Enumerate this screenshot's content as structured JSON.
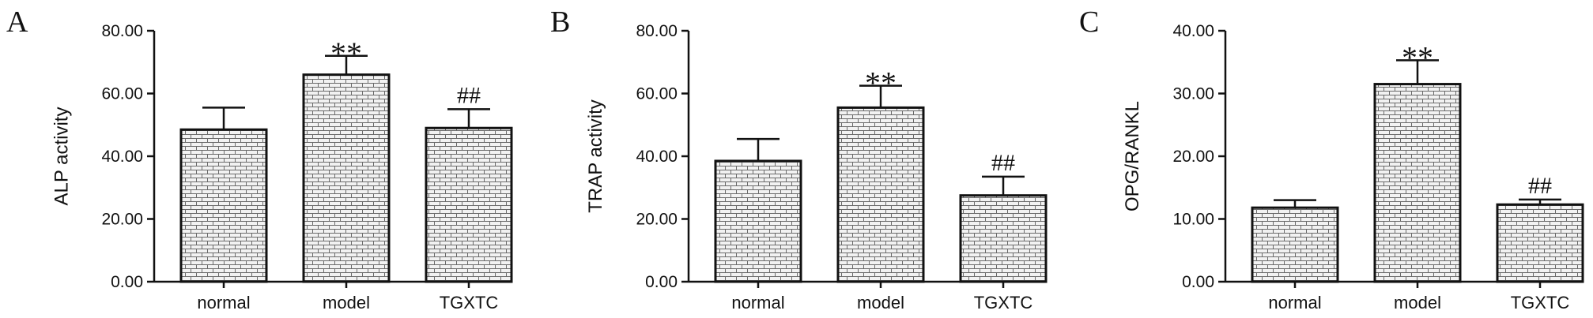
{
  "chart_data": [
    {
      "type": "bar",
      "panel_label": "A",
      "ylabel": "ALP activity",
      "categories": [
        "normal",
        "model",
        "TGXTC"
      ],
      "values": [
        48.5,
        66.0,
        49.0
      ],
      "errors": [
        7.0,
        6.0,
        6.0
      ],
      "significance": [
        "",
        "**",
        "##"
      ],
      "ylim": [
        0,
        80
      ],
      "yticks": [
        "0.00",
        "20.00",
        "40.00",
        "60.00",
        "80.00"
      ],
      "grid": false,
      "bar_fill": "brick-hatch gray"
    },
    {
      "type": "bar",
      "panel_label": "B",
      "ylabel": "TRAP activity",
      "categories": [
        "normal",
        "model",
        "TGXTC"
      ],
      "values": [
        38.5,
        55.5,
        27.5
      ],
      "errors": [
        7.0,
        7.0,
        6.0
      ],
      "significance": [
        "",
        "**",
        "##"
      ],
      "ylim": [
        0,
        80
      ],
      "yticks": [
        "0.00",
        "20.00",
        "40.00",
        "60.00",
        "80.00"
      ],
      "grid": false,
      "bar_fill": "brick-hatch gray"
    },
    {
      "type": "bar",
      "panel_label": "C",
      "ylabel": "OPG/RANKL",
      "categories": [
        "normal",
        "model",
        "TGXTC"
      ],
      "values": [
        11.8,
        31.5,
        12.3
      ],
      "errors": [
        1.2,
        3.8,
        0.8
      ],
      "significance": [
        "",
        "**",
        "##"
      ],
      "ylim": [
        0,
        40
      ],
      "yticks": [
        "0.00",
        "10.00",
        "20.00",
        "30.00",
        "40.00"
      ],
      "grid": false,
      "bar_fill": "brick-hatch gray"
    }
  ],
  "colors": {
    "axis": "#111111",
    "bar_fill": "#f2f2f2",
    "hatch": "#6a6a6a"
  }
}
